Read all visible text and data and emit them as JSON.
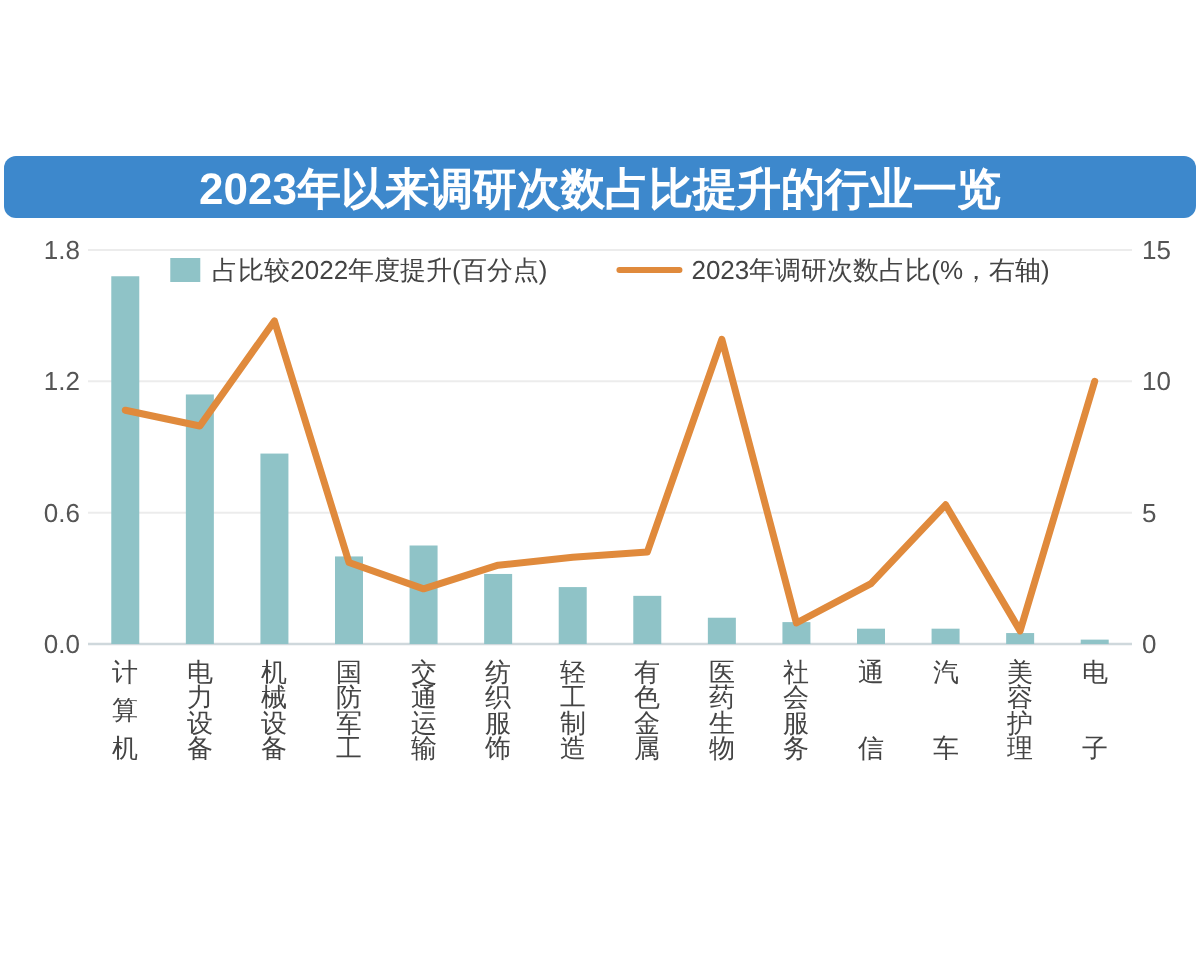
{
  "chart_data": {
    "type": "bar",
    "title": "2023年以来调研次数占比提升的行业一览",
    "categories": [
      "计算机",
      "电力设备",
      "机械设备",
      "国防军工",
      "交通运输",
      "纺织服饰",
      "轻工制造",
      "有色金属",
      "医药生物",
      "社会服务",
      "通信",
      "汽车",
      "美容护理",
      "电子"
    ],
    "series": [
      {
        "name": "占比较2022年度提升(百分点)",
        "color": "#8fc3c7",
        "values": [
          1.68,
          1.14,
          0.87,
          0.4,
          0.45,
          0.32,
          0.26,
          0.22,
          0.12,
          0.1,
          0.07,
          0.07,
          0.05,
          0.02
        ]
      },
      {
        "name": "2023年调研次数占比(%，右轴)",
        "type": "line",
        "axis": "y2",
        "color": "#e08a3c",
        "values": [
          8.9,
          8.3,
          12.3,
          3.1,
          2.1,
          3.0,
          3.3,
          3.5,
          11.6,
          0.8,
          2.3,
          5.3,
          0.5,
          10.0
        ]
      }
    ],
    "ylim": [
      0,
      1.8
    ],
    "yticks": [
      {
        "value": 0,
        "label": "0.0"
      },
      0.6,
      1.2,
      1.8
    ],
    "y2lim": [
      0,
      15
    ],
    "y2ticks": [
      0,
      5,
      10,
      15
    ],
    "grid": "y",
    "legend": "top"
  }
}
